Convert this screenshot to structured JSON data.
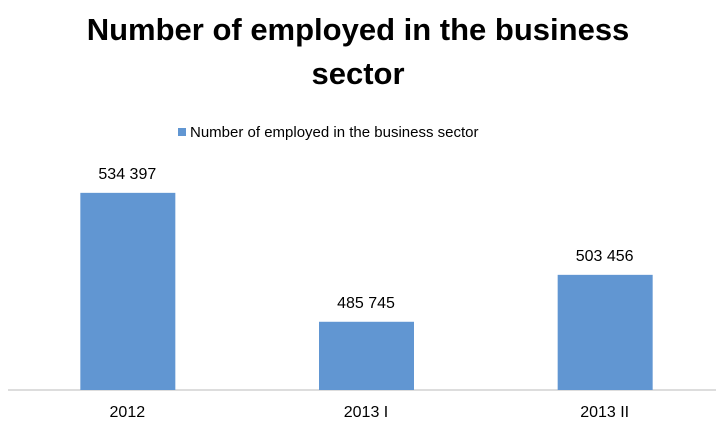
{
  "chart_data": {
    "type": "bar",
    "title": "Number of employed in the business sector",
    "categories": [
      "2012",
      "2013 I",
      "2013 II"
    ],
    "series": [
      {
        "name": "Number of employed in the business sector",
        "color": "#6196d2",
        "values": [
          534397,
          485745,
          503456
        ],
        "value_labels": [
          "534 397",
          "485 745",
          "503 456"
        ]
      }
    ],
    "ylim": [
      460000,
      560000
    ],
    "legend": "top"
  }
}
